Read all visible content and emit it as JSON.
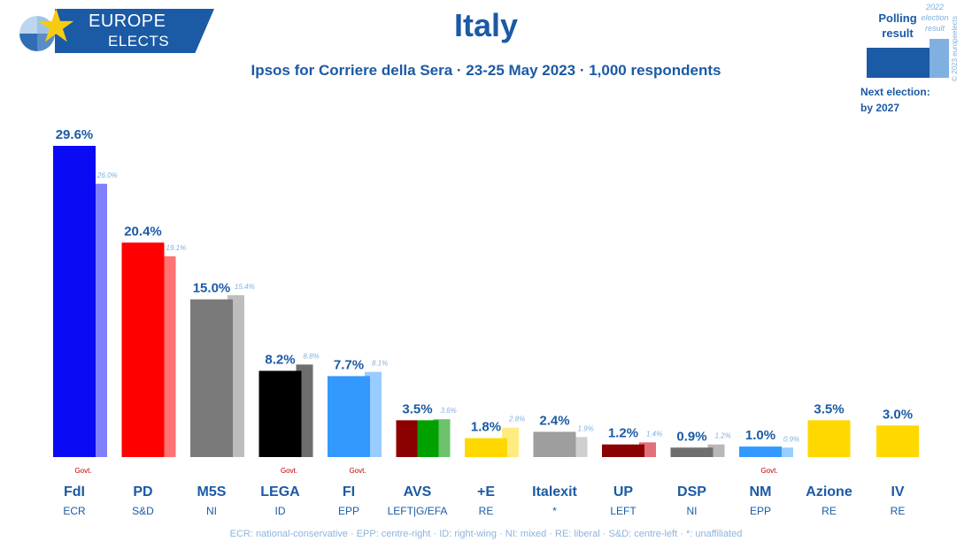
{
  "header": {
    "title": "Italy",
    "subtitle": "Ipsos for Corriere della Sera · 23-25 May 2023 · 1,000 respondents"
  },
  "logo": {
    "line1": "EUROPE",
    "line2": "ELECTS"
  },
  "legend": {
    "polling": "Polling result",
    "election": "2022 election result",
    "next_election": [
      "Next election:",
      "by 2027"
    ],
    "copyright": "© 2023 europeelects"
  },
  "colors": {
    "accent": "#1b5aa5",
    "light_accent": "#7fb0df",
    "govt": "#c00000"
  },
  "footnote": "ECR: national-conservative · EPP: centre-right · ID: right-wing · NI: mixed · RE: liberal · S&D: centre-left · *: unaffiliated",
  "chart_data": {
    "type": "bar",
    "ylim": [
      0,
      30
    ],
    "govt_label": "Govt.",
    "categories": [
      "FdI",
      "PD",
      "M5S",
      "LEGA",
      "FI",
      "AVS",
      "+E",
      "Italexit",
      "UP",
      "DSP",
      "NM",
      "Azione",
      "IV"
    ],
    "groups": [
      "ECR",
      "S&D",
      "NI",
      "ID",
      "EPP",
      "LEFT|G/EFA",
      "RE",
      "*",
      "LEFT",
      "NI",
      "EPP",
      "RE",
      "RE"
    ],
    "series": [
      {
        "name": "Polling result",
        "values": [
          29.6,
          20.4,
          15.0,
          8.2,
          7.7,
          3.5,
          1.8,
          2.4,
          1.2,
          0.9,
          1.0,
          3.5,
          3.0
        ],
        "labels": [
          "29.6%",
          "20.4%",
          "15.0%",
          "8.2%",
          "7.7%",
          "3.5%",
          "1.8%",
          "2.4%",
          "1.2%",
          "0.9%",
          "1.0%",
          "3.5%",
          "3.0%"
        ]
      },
      {
        "name": "2022 election result",
        "values": [
          26.0,
          19.1,
          15.4,
          8.8,
          8.1,
          3.6,
          2.8,
          1.9,
          1.4,
          1.2,
          0.9,
          null,
          null
        ],
        "labels": [
          "26.0%",
          "19.1%",
          "15.4%",
          "8.8%",
          "8.1%",
          "3.6%",
          "2.8%",
          "1.9%",
          "1.4%",
          "1.2%",
          "0.9%",
          "",
          ""
        ]
      }
    ],
    "colors": [
      "#0a0af5",
      "#ff0000",
      "#7a7a7a",
      "#000000",
      "#3399ff",
      "#8b0000",
      "#ffd800",
      "#9e9e9e",
      "#8b0000",
      "#6e6e6e",
      "#3399ff",
      "#ffd800",
      "#ffd800"
    ],
    "prev_colors": [
      "#8080ff",
      "#ff7373",
      "#bdbdbd",
      "#6e6e6e",
      "#99ccff",
      "#6cc36c",
      "#ffec80",
      "#cfcfcf",
      "#e0707a",
      "#b8b8b8",
      "#99ccff",
      "",
      ""
    ],
    "avs_split_colors": [
      "#8b0000",
      "#00a000"
    ],
    "govt": [
      true,
      false,
      false,
      true,
      true,
      false,
      false,
      false,
      false,
      false,
      true,
      false,
      false
    ]
  }
}
